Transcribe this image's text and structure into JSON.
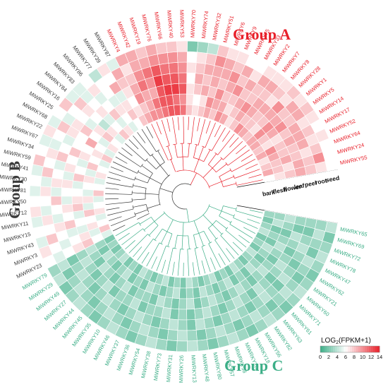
{
  "chart_data": {
    "type": "heatmap",
    "layout": "circular",
    "colors": {
      "low": "#3cae87",
      "mid": "#ffffff",
      "high": "#e8202a",
      "group_a": "#e8202a",
      "group_b": "#3a3a3a",
      "group_c": "#3cae87"
    },
    "groups": [
      {
        "name": "Group A",
        "color": "#e8202a",
        "genes": [
          "MiWRKY55",
          "MiWRKY24",
          "MiWRKY64",
          "MiWRKY52",
          "MiWRKY17",
          "MiWRKY14",
          "MiWRKY5",
          "MiWRKY1",
          "MiWRKY28",
          "MiWRKY8",
          "MiWRKY7",
          "MiWRKY2",
          "MiWRKY33",
          "MiWRKY75",
          "MiWRKY9",
          "MiWRKY6",
          "MiWRKY51",
          "MiWRKY32",
          "MiWRKY74",
          "MiWRKY70",
          "MiWRKY53",
          "MiWRKY40",
          "MiWRKY66",
          "MiWRKY76",
          "MiWRKY19",
          "MiWRKY42",
          "MiWRKY4"
        ]
      },
      {
        "name": "Group B",
        "color": "#3a3a3a",
        "genes": [
          "MiWRKY87",
          "MiWRKY39",
          "MiWRKY77",
          "MiWRKY86",
          "MiWRKY83",
          "MiWRKY84",
          "MiWRKY16",
          "MiWRKY25",
          "MiWRKY68",
          "MiWRKY22",
          "MiWRKY67",
          "MiWRKY34",
          "MiWRKY59",
          "MiWRKY41",
          "MiWRKY30",
          "MiWRKY81",
          "MiWRKY50",
          "MiWRKY12",
          "MiWRKY11",
          "MiWRKY15",
          "MiWRKY43",
          "MiWRKY3",
          "MiWRKY23"
        ]
      },
      {
        "name": "Group C",
        "color": "#3cae87",
        "genes": [
          "MiWRKY79",
          "MiWRKY29",
          "MiWRKY49",
          "MiWRKY27",
          "MiWRKY44",
          "MiWRKY45",
          "MiWRKY35",
          "MiWRKY10",
          "MiWRKY46",
          "MiWRKY37",
          "MiWRKY36",
          "MiWRKY54",
          "MiWRKY38",
          "MiWRKY73",
          "MiWRKY31",
          "MiWRKY26",
          "MiWRKY13",
          "MiWRKY48",
          "MiWRKY80",
          "MiWRKY57",
          "MiWRKY58",
          "MiWRKY20",
          "MiWRKY18",
          "MiWRKY56",
          "MiWRKY82",
          "MiWRKY63",
          "MiWRKY61",
          "MiWRKY71",
          "MiWRKY60",
          "MiWRKY21",
          "MiWRKY62",
          "MiWRKY47",
          "MiWRKY78",
          "MiWRKY72",
          "MiWRKY69",
          "MiWRKY65"
        ]
      }
    ],
    "tissues": [
      "bark",
      "flesh",
      "flower",
      "leaf",
      "peel",
      "root",
      "seed"
    ],
    "values": {
      "MiWRKY55": [
        6,
        7,
        8,
        9,
        8,
        7,
        6
      ],
      "MiWRKY24": [
        9,
        8,
        7,
        9,
        8,
        10,
        6
      ],
      "MiWRKY64": [
        8,
        8,
        9,
        8,
        7,
        8,
        6
      ],
      "MiWRKY52": [
        7,
        9,
        8,
        8,
        9,
        7,
        7
      ],
      "MiWRKY17": [
        9,
        10,
        8,
        9,
        9,
        8,
        6
      ],
      "MiWRKY14": [
        8,
        7,
        7,
        8,
        9,
        7,
        7
      ],
      "MiWRKY5": [
        9,
        8,
        9,
        10,
        8,
        9,
        8
      ],
      "MiWRKY1": [
        9,
        10,
        10,
        9,
        8,
        9,
        7
      ],
      "MiWRKY28": [
        8,
        7,
        8,
        9,
        10,
        7,
        8
      ],
      "MiWRKY8": [
        9,
        8,
        8,
        9,
        7,
        8,
        7
      ],
      "MiWRKY7": [
        10,
        8,
        9,
        9,
        8,
        9,
        7
      ],
      "MiWRKY2": [
        8,
        9,
        10,
        8,
        8,
        9,
        7
      ],
      "MiWRKY33": [
        7,
        8,
        9,
        8,
        9,
        7,
        6
      ],
      "MiWRKY75": [
        9,
        7,
        8,
        10,
        8,
        9,
        6
      ],
      "MiWRKY9": [
        10,
        9,
        8,
        9,
        10,
        8,
        7
      ],
      "MiWRKY6": [
        8,
        9,
        10,
        8,
        9,
        9,
        7
      ],
      "MiWRKY51": [
        9,
        10,
        8,
        9,
        9,
        10,
        8
      ],
      "MiWRKY32": [
        8,
        7,
        9,
        8,
        9,
        8,
        4
      ],
      "MiWRKY74": [
        7,
        6,
        8,
        9,
        8,
        7,
        3
      ],
      "MiWRKY70": [
        8,
        7,
        7,
        6,
        7,
        6,
        2
      ],
      "MiWRKY53": [
        11,
        10,
        12,
        11,
        10,
        9,
        7
      ],
      "MiWRKY40": [
        12,
        11,
        13,
        12,
        11,
        10,
        8
      ],
      "MiWRKY66": [
        12,
        12,
        13,
        12,
        11,
        10,
        8
      ],
      "MiWRKY76": [
        11,
        12,
        12,
        13,
        12,
        10,
        9
      ],
      "MiWRKY19": [
        10,
        11,
        9,
        10,
        11,
        9,
        8
      ],
      "MiWRKY42": [
        10,
        9,
        9,
        11,
        10,
        9,
        9
      ],
      "MiWRKY4": [
        9,
        8,
        10,
        9,
        8,
        7,
        9
      ],
      "MiWRKY87": [
        8,
        7,
        6,
        7,
        8,
        9,
        5
      ],
      "MiWRKY39": [
        6,
        8,
        7,
        5,
        9,
        6,
        7
      ],
      "MiWRKY77": [
        5,
        6,
        7,
        5,
        6,
        6,
        4
      ],
      "MiWRKY86": [
        7,
        5,
        8,
        6,
        5,
        7,
        6
      ],
      "MiWRKY83": [
        8,
        6,
        5,
        7,
        6,
        5,
        5
      ],
      "MiWRKY84": [
        5,
        7,
        4,
        6,
        7,
        8,
        5
      ],
      "MiWRKY16": [
        6,
        8,
        7,
        5,
        6,
        6,
        8
      ],
      "MiWRKY25": [
        7,
        5,
        6,
        8,
        7,
        5,
        6
      ],
      "MiWRKY68": [
        5,
        6,
        9,
        6,
        7,
        8,
        5
      ],
      "MiWRKY22": [
        8,
        7,
        6,
        6,
        5,
        6,
        7
      ],
      "MiWRKY67": [
        5,
        6,
        7,
        8,
        6,
        5,
        5
      ],
      "MiWRKY34": [
        6,
        8,
        5,
        6,
        8,
        7,
        6
      ],
      "MiWRKY59": [
        7,
        5,
        6,
        7,
        5,
        6,
        8
      ],
      "MiWRKY41": [
        5,
        7,
        8,
        5,
        6,
        8,
        5
      ],
      "MiWRKY30": [
        6,
        6,
        5,
        7,
        7,
        5,
        6
      ],
      "MiWRKY81": [
        8,
        5,
        6,
        6,
        5,
        7,
        5
      ],
      "MiWRKY50": [
        5,
        7,
        7,
        5,
        8,
        6,
        6
      ],
      "MiWRKY12": [
        6,
        5,
        8,
        7,
        6,
        5,
        7
      ],
      "MiWRKY11": [
        7,
        8,
        5,
        6,
        5,
        7,
        5
      ],
      "MiWRKY15": [
        5,
        6,
        6,
        8,
        7,
        6,
        6
      ],
      "MiWRKY43": [
        6,
        7,
        5,
        5,
        6,
        8,
        5
      ],
      "MiWRKY3": [
        8,
        5,
        7,
        6,
        5,
        6,
        7
      ],
      "MiWRKY23": [
        5,
        6,
        8,
        7,
        6,
        5,
        6
      ],
      "MiWRKY79": [
        2,
        3,
        4,
        3,
        2,
        4,
        3
      ],
      "MiWRKY29": [
        3,
        2,
        3,
        4,
        3,
        2,
        4
      ],
      "MiWRKY49": [
        2,
        4,
        2,
        3,
        4,
        3,
        2
      ],
      "MiWRKY27": [
        3,
        3,
        4,
        2,
        3,
        4,
        3
      ],
      "MiWRKY44": [
        4,
        2,
        3,
        3,
        2,
        3,
        4
      ],
      "MiWRKY45": [
        2,
        3,
        2,
        4,
        3,
        2,
        3
      ],
      "MiWRKY35": [
        3,
        4,
        3,
        2,
        4,
        3,
        2
      ],
      "MiWRKY10": [
        2,
        2,
        4,
        3,
        3,
        4,
        3
      ],
      "MiWRKY46": [
        4,
        3,
        2,
        3,
        2,
        3,
        4
      ],
      "MiWRKY37": [
        3,
        2,
        3,
        4,
        3,
        2,
        3
      ],
      "MiWRKY36": [
        2,
        4,
        3,
        2,
        4,
        3,
        2
      ],
      "MiWRKY54": [
        3,
        3,
        2,
        3,
        3,
        4,
        3
      ],
      "MiWRKY38": [
        4,
        2,
        4,
        3,
        2,
        3,
        4
      ],
      "MiWRKY73": [
        2,
        3,
        3,
        4,
        3,
        2,
        3
      ],
      "MiWRKY31": [
        3,
        4,
        2,
        2,
        4,
        3,
        2
      ],
      "MiWRKY26": [
        2,
        2,
        3,
        3,
        3,
        4,
        3
      ],
      "MiWRKY13": [
        4,
        3,
        4,
        2,
        2,
        3,
        4
      ],
      "MiWRKY48": [
        3,
        2,
        2,
        3,
        4,
        2,
        3
      ],
      "MiWRKY80": [
        2,
        4,
        3,
        4,
        3,
        3,
        2
      ],
      "MiWRKY57": [
        3,
        3,
        4,
        3,
        2,
        4,
        3
      ],
      "MiWRKY58": [
        4,
        2,
        3,
        2,
        3,
        3,
        4
      ],
      "MiWRKY20": [
        2,
        3,
        2,
        3,
        4,
        2,
        3
      ],
      "MiWRKY18": [
        3,
        4,
        3,
        4,
        3,
        3,
        2
      ],
      "MiWRKY56": [
        2,
        2,
        4,
        3,
        2,
        4,
        3
      ],
      "MiWRKY82": [
        4,
        3,
        3,
        2,
        3,
        3,
        4
      ],
      "MiWRKY63": [
        3,
        2,
        2,
        4,
        4,
        2,
        3
      ],
      "MiWRKY61": [
        2,
        4,
        3,
        3,
        3,
        3,
        2
      ],
      "MiWRKY71": [
        3,
        3,
        4,
        2,
        2,
        4,
        3
      ],
      "MiWRKY60": [
        4,
        2,
        3,
        3,
        4,
        3,
        4
      ],
      "MiWRKY21": [
        2,
        3,
        2,
        4,
        3,
        2,
        3
      ],
      "MiWRKY62": [
        3,
        4,
        3,
        3,
        2,
        3,
        2
      ],
      "MiWRKY47": [
        2,
        2,
        4,
        2,
        3,
        4,
        3
      ],
      "MiWRKY78": [
        4,
        3,
        3,
        3,
        4,
        2,
        4
      ],
      "MiWRKY72": [
        3,
        2,
        2,
        4,
        3,
        3,
        3
      ],
      "MiWRKY69": [
        2,
        4,
        3,
        2,
        2,
        4,
        2
      ],
      "MiWRKY65": [
        3,
        3,
        4,
        3,
        3,
        3,
        4
      ]
    },
    "legend": {
      "title_main": "LOG",
      "title_sub": "2",
      "title_rest": "(FPKM+1)",
      "ticks": [
        "0",
        "2",
        "4",
        "6",
        "8",
        "10",
        "12",
        "14"
      ],
      "range": [
        0,
        14
      ]
    }
  }
}
